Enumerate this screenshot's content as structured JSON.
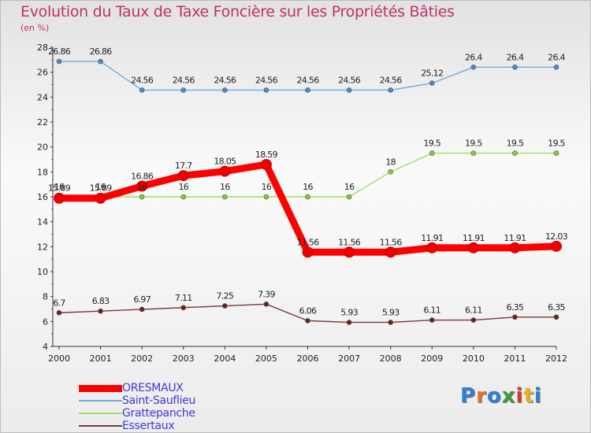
{
  "title": "Evolution du Taux de Taxe Foncière sur les Propriétés Bâties",
  "subtitle": "(en %)",
  "logo": {
    "text": "Proxiti",
    "letters": [
      "P",
      "r",
      "o",
      "x",
      "i",
      "t",
      "i"
    ],
    "letter_colors": [
      "#2f7fd6",
      "#e8731f",
      "#2f7fd6",
      "#3a9d3a",
      "#d63a2f",
      "#e8b21f",
      "#2f7fd6"
    ]
  },
  "chart_data": {
    "type": "line",
    "title": "Evolution du Taux de Taxe Foncière sur les Propriétés Bâties",
    "ylabel": "(en %)",
    "xlabel": "",
    "ylim": [
      4,
      28
    ],
    "yticks": [
      4,
      6,
      8,
      10,
      12,
      14,
      16,
      18,
      20,
      22,
      24,
      26,
      28
    ],
    "grid": false,
    "legend_position": "bottom-left",
    "categories": [
      "2000",
      "2001",
      "2002",
      "2003",
      "2004",
      "2005",
      "2006",
      "2007",
      "2008",
      "2009",
      "2010",
      "2011",
      "2012"
    ],
    "series": [
      {
        "name": "ORESMAUX",
        "color": "#ff0000",
        "marker_color": "#ee0000",
        "emphasis": true,
        "values": [
          15.89,
          15.89,
          16.86,
          17.7,
          18.05,
          18.59,
          11.56,
          11.56,
          11.56,
          11.91,
          11.91,
          11.91,
          12.03
        ],
        "labels": [
          "15.89",
          "15.89",
          "16.86",
          "17.7",
          "18.05",
          "18.59",
          "11.56",
          "11.56",
          "11.56",
          "11.91",
          "11.91",
          "11.91",
          "12.03"
        ]
      },
      {
        "name": "Saint-Sauflieu",
        "color": "#75a9d6",
        "marker_color": "#4a8cc8",
        "emphasis": false,
        "values": [
          26.86,
          26.86,
          24.56,
          24.56,
          24.56,
          24.56,
          24.56,
          24.56,
          24.56,
          25.12,
          26.4,
          26.4,
          26.4
        ],
        "labels": [
          "26.86",
          "26.86",
          "24.56",
          "24.56",
          "24.56",
          "24.56",
          "24.56",
          "24.56",
          "24.56",
          "25.12",
          "26.4",
          "26.4",
          "26.4"
        ]
      },
      {
        "name": "Grattepanche",
        "color": "#a0de66",
        "marker_color": "#7ccf3a",
        "emphasis": false,
        "values": [
          16,
          16,
          16,
          16,
          16,
          16,
          16,
          16,
          18,
          19.5,
          19.5,
          19.5,
          19.5
        ],
        "labels": [
          "16",
          "16",
          "16",
          "16",
          "16",
          "16",
          "16",
          "16",
          "18",
          "19.5",
          "19.5",
          "19.5",
          "19.5"
        ]
      },
      {
        "name": "Essertaux",
        "color": "#7a3a3a",
        "marker_color": "#6a2020",
        "emphasis": false,
        "values": [
          6.7,
          6.83,
          6.97,
          7.11,
          7.25,
          7.39,
          6.06,
          5.93,
          5.93,
          6.11,
          6.11,
          6.35,
          6.35
        ],
        "labels": [
          "6.7",
          "6.83",
          "6.97",
          "7.11",
          "7.25",
          "7.39",
          "6.06",
          "5.93",
          "5.93",
          "6.11",
          "6.11",
          "6.35",
          "6.35"
        ]
      }
    ]
  }
}
